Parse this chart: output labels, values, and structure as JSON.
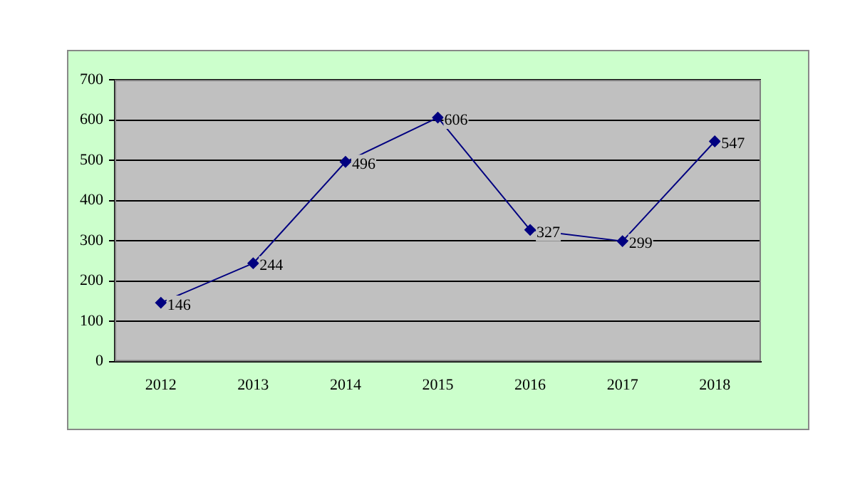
{
  "chart_data": {
    "type": "line",
    "categories": [
      "2012",
      "2013",
      "2014",
      "2015",
      "2016",
      "2017",
      "2018"
    ],
    "series": [
      {
        "color": "#000080",
        "values": [
          146,
          244,
          496,
          606,
          327,
          299,
          547
        ]
      }
    ],
    "ylim": [
      0,
      700
    ],
    "yticks": [
      0,
      100,
      200,
      300,
      400,
      500,
      600,
      700
    ],
    "grid": "y",
    "marker": "diamond",
    "data_labels": true
  }
}
